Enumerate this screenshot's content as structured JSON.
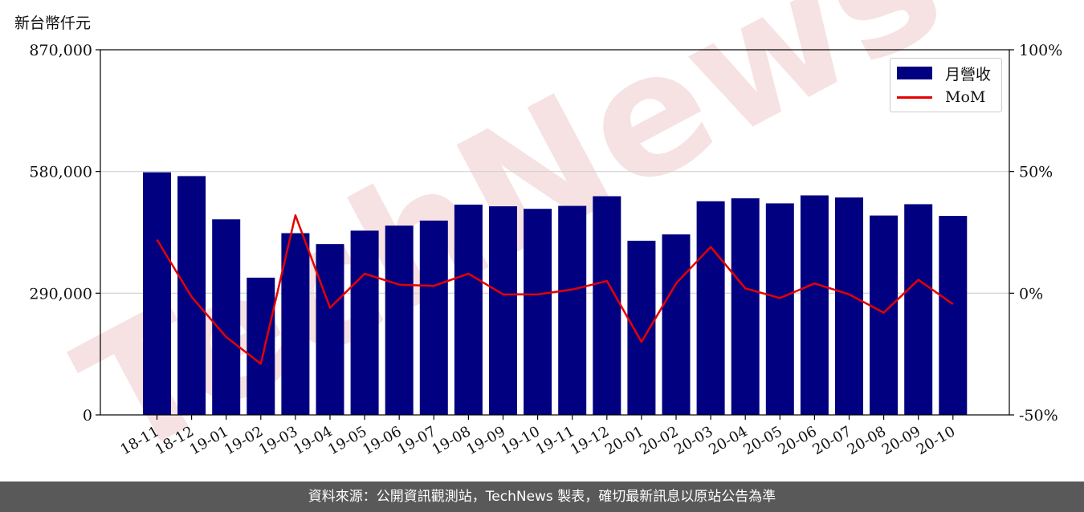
{
  "unit_label": "新台幣仟元",
  "footer": "資料來源：公開資訊觀測站，TechNews 製表，確切最新訊息以原站公告為準",
  "colors": {
    "bar": "#000080",
    "line": "#e60000",
    "grid": "#d0d0d0",
    "footer_bg": "#595959",
    "watermark": "#f4d9d9"
  },
  "watermark": "TechNews",
  "chart_data": {
    "type": "bar",
    "categories": [
      "18-11",
      "18-12",
      "19-01",
      "19-02",
      "19-03",
      "19-04",
      "19-05",
      "19-06",
      "19-07",
      "19-08",
      "19-09",
      "19-10",
      "19-11",
      "19-12",
      "20-01",
      "20-02",
      "20-03",
      "20-04",
      "20-05",
      "20-06",
      "20-07",
      "20-08",
      "20-09",
      "20-10"
    ],
    "series": [
      {
        "name": "月營收",
        "type": "bar",
        "axis": "left",
        "values": [
          578000,
          569000,
          466000,
          327000,
          433000,
          407000,
          439000,
          451000,
          463000,
          501000,
          497000,
          491000,
          498000,
          521000,
          415000,
          430000,
          509000,
          516000,
          504000,
          523000,
          518000,
          475000,
          502000,
          474000
        ]
      },
      {
        "name": "MoM",
        "type": "line",
        "axis": "right",
        "values": [
          22,
          -1.5,
          -18,
          -29,
          32,
          -6,
          8,
          3.5,
          3,
          8,
          -0.5,
          -0.5,
          1.5,
          5,
          -20,
          4,
          19,
          2,
          -2,
          4,
          -0.5,
          -8,
          5.5,
          -4.5
        ]
      }
    ],
    "y_left": {
      "ticks": [
        "0",
        "290,000",
        "580,000",
        "870,000"
      ],
      "range": [
        0,
        870000
      ]
    },
    "y_right": {
      "ticks": [
        "-50%",
        "0%",
        "50%",
        "100%"
      ],
      "range": [
        -50,
        100
      ]
    },
    "grid": true,
    "legend": "top-right"
  }
}
